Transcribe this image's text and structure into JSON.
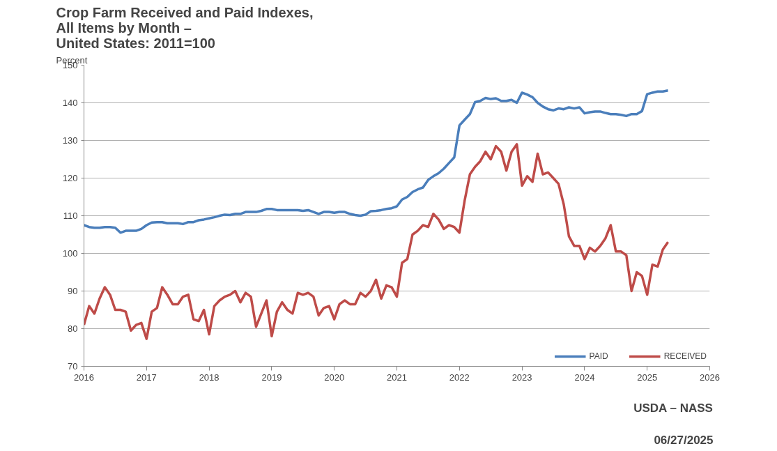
{
  "chart_data": {
    "type": "line",
    "title": "Crop Farm Received and Paid Indexes,\nAll Items by Month –\nUnited States: 2011=100",
    "ylabel": "Percent",
    "annotations": [
      "USDA – NASS",
      "06/27/2025"
    ],
    "xlim": [
      2016,
      2026
    ],
    "xticks": [
      2016,
      2017,
      2018,
      2019,
      2020,
      2021,
      2022,
      2023,
      2024,
      2025,
      2026
    ],
    "ylim": [
      70,
      150
    ],
    "yticks": [
      70,
      80,
      90,
      100,
      110,
      120,
      130,
      140,
      150
    ],
    "grid": "y",
    "legend": "bottom right",
    "marker": "none",
    "line_style": "solid",
    "series": [
      {
        "name": "PAID",
        "color": "#4a7ebb",
        "values": [
          107.5,
          107,
          106.8,
          106.8,
          107,
          107,
          106.8,
          105.5,
          106,
          106,
          106,
          106.5,
          107.5,
          108.2,
          108.3,
          108.3,
          108,
          108,
          108,
          107.8,
          108.3,
          108.3,
          108.8,
          109,
          109.3,
          109.6,
          110,
          110.3,
          110.2,
          110.5,
          110.5,
          111,
          111,
          111,
          111.3,
          111.8,
          111.8,
          111.5,
          111.5,
          111.5,
          111.5,
          111.5,
          111.3,
          111.5,
          111,
          110.5,
          111,
          111,
          110.8,
          111,
          111,
          110.5,
          110.2,
          110,
          110.3,
          111.2,
          111.3,
          111.5,
          111.8,
          112,
          112.5,
          114.3,
          115,
          116.3,
          117,
          117.5,
          119.5,
          120.5,
          121.3,
          122.5,
          124,
          125.5,
          134,
          135.5,
          137,
          140.2,
          140.5,
          141.3,
          141,
          141.2,
          140.5,
          140.5,
          140.8,
          140,
          142.7,
          142.2,
          141.5,
          140,
          139,
          138.3,
          138,
          138.5,
          138.3,
          138.8,
          138.5,
          138.8,
          137.2,
          137.5,
          137.7,
          137.7,
          137.3,
          137,
          137,
          136.8,
          136.5,
          137,
          137,
          137.8,
          142.3,
          142.7,
          143,
          143,
          143.3
        ]
      },
      {
        "name": "RECEIVED",
        "color": "#be4b48",
        "values": [
          81,
          86,
          84,
          88,
          91,
          89,
          85,
          85,
          84.5,
          79.5,
          81,
          81.5,
          77.3,
          84.5,
          85.5,
          91,
          89,
          86.5,
          86.5,
          88.5,
          89,
          82.5,
          82,
          85,
          78.5,
          86,
          87.5,
          88.5,
          89,
          90,
          87,
          89.5,
          88.5,
          80.5,
          84,
          87.5,
          78,
          84.5,
          87,
          85,
          84,
          89.5,
          89,
          89.5,
          88.5,
          83.5,
          85.5,
          86,
          82.5,
          86.5,
          87.5,
          86.5,
          86.5,
          89.5,
          88.5,
          90,
          93,
          88,
          91.5,
          91,
          88.5,
          97.5,
          98.5,
          105,
          106,
          107.5,
          107,
          110.5,
          109,
          106.5,
          107.5,
          107,
          105.5,
          114,
          121,
          123,
          124.5,
          127,
          125,
          128.5,
          127,
          122,
          127,
          129,
          118,
          120.5,
          119,
          126.5,
          121,
          121.5,
          120,
          118.5,
          113,
          104.5,
          102,
          102,
          98.5,
          101.5,
          100.5,
          102,
          104,
          107.5,
          100.5,
          100.5,
          99.5,
          90,
          95,
          94,
          89,
          97,
          96.5,
          101,
          103
        ]
      }
    ],
    "x": [
      2016.0,
      2016.083,
      2016.167,
      2016.25,
      2016.333,
      2016.417,
      2016.5,
      2016.583,
      2016.667,
      2016.75,
      2016.833,
      2016.917,
      2017.0,
      2017.083,
      2017.167,
      2017.25,
      2017.333,
      2017.417,
      2017.5,
      2017.583,
      2017.667,
      2017.75,
      2017.833,
      2017.917,
      2018.0,
      2018.083,
      2018.167,
      2018.25,
      2018.333,
      2018.417,
      2018.5,
      2018.583,
      2018.667,
      2018.75,
      2018.833,
      2018.917,
      2019.0,
      2019.083,
      2019.167,
      2019.25,
      2019.333,
      2019.417,
      2019.5,
      2019.583,
      2019.667,
      2019.75,
      2019.833,
      2019.917,
      2020.0,
      2020.083,
      2020.167,
      2020.25,
      2020.333,
      2020.417,
      2020.5,
      2020.583,
      2020.667,
      2020.75,
      2020.833,
      2020.917,
      2021.0,
      2021.083,
      2021.167,
      2021.25,
      2021.333,
      2021.417,
      2021.5,
      2021.583,
      2021.667,
      2021.75,
      2021.833,
      2021.917,
      2022.0,
      2022.083,
      2022.167,
      2022.25,
      2022.333,
      2022.417,
      2022.5,
      2022.583,
      2022.667,
      2022.75,
      2022.833,
      2022.917,
      2023.0,
      2023.083,
      2023.167,
      2023.25,
      2023.333,
      2023.417,
      2023.5,
      2023.583,
      2023.667,
      2023.75,
      2023.833,
      2023.917,
      2024.0,
      2024.083,
      2024.167,
      2024.25,
      2024.333,
      2024.417,
      2024.5,
      2024.583,
      2024.667,
      2024.75,
      2024.833,
      2024.917,
      2025.0,
      2025.083,
      2025.167,
      2025.25,
      2025.333
    ]
  }
}
